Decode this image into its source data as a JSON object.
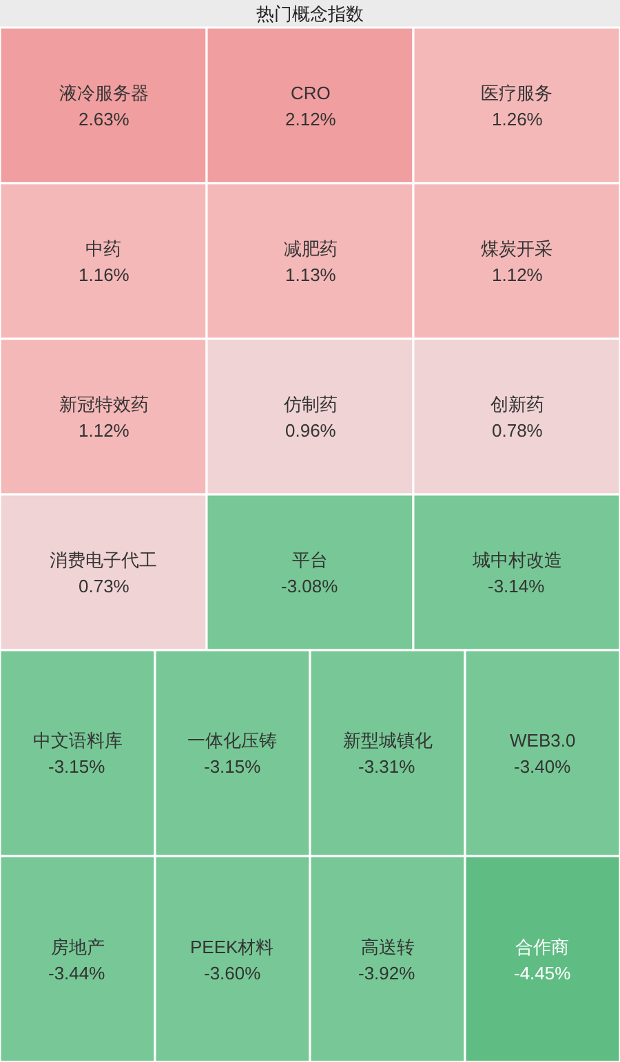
{
  "chart_data": {
    "type": "other",
    "title": "热门概念指数",
    "categories": [
      "液冷服务器",
      "CRO",
      "医疗服务",
      "中药",
      "减肥药",
      "煤炭开采",
      "新冠特效药",
      "仿制药",
      "创新药",
      "消费电子代工",
      "平台",
      "城中村改造",
      "中文语料库",
      "一体化压铸",
      "新型城镇化",
      "WEB3.0",
      "房地产",
      "PEEK材料",
      "高送转",
      "合作商"
    ],
    "values": [
      2.63,
      2.12,
      1.26,
      1.16,
      1.13,
      1.12,
      1.12,
      0.96,
      0.78,
      0.73,
      -3.08,
      -3.14,
      -3.15,
      -3.15,
      -3.31,
      -3.4,
      -3.44,
      -3.6,
      -3.92,
      -4.45
    ],
    "value_labels": [
      "2.63%",
      "2.12%",
      "1.26%",
      "1.16%",
      "1.13%",
      "1.12%",
      "1.12%",
      "0.96%",
      "0.78%",
      "0.73%",
      "-3.08%",
      "-3.14%",
      "-3.15%",
      "-3.15%",
      "-3.31%",
      "-3.40%",
      "-3.44%",
      "-3.60%",
      "-3.92%",
      "-4.45%"
    ],
    "colors": [
      "#f09e9f",
      "#f09e9f",
      "#f4b8b8",
      "#f4b8b8",
      "#f4b8b8",
      "#f4b8b8",
      "#f4b8b8",
      "#f0d3d4",
      "#f0d3d4",
      "#f0d3d4",
      "#77c896",
      "#77c896",
      "#77c896",
      "#77c896",
      "#77c896",
      "#77c896",
      "#77c896",
      "#77c896",
      "#77c896",
      "#5fbd83"
    ]
  }
}
